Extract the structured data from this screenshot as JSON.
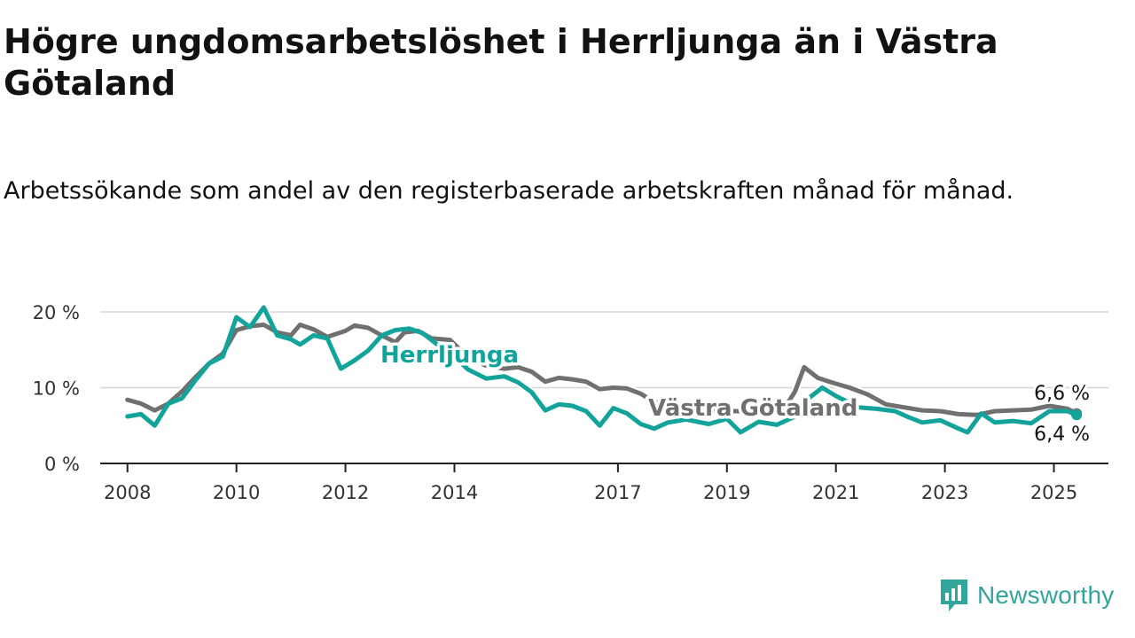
{
  "header": {
    "title": "Högre ungdomsarbetslöshet i Herrljunga än i Västra Götaland",
    "subtitle": "Arbetssökande som andel av den registerbaserade arbetskraften månad för månad."
  },
  "brand": {
    "name": "Newsworthy",
    "icon": "newsworthy-logo-icon",
    "color": "#33a59a"
  },
  "colors": {
    "herrljunga": "#12a39b",
    "vastra_gotaland": "#707070",
    "grid": "#d6d6d6",
    "axis": "#222222"
  },
  "chart_data": {
    "type": "line",
    "title": "Högre ungdomsarbetslöshet i Herrljunga än i Västra Götaland",
    "subtitle": "Arbetssökande som andel av den registerbaserade arbetskraften månad för månad.",
    "xlabel": "",
    "ylabel": "",
    "x_ticks": [
      "2008",
      "2010",
      "2012",
      "2014",
      "2017",
      "2019",
      "2021",
      "2023",
      "2025"
    ],
    "y_ticks": [
      "0 %",
      "10 %",
      "20 %"
    ],
    "ylim": [
      0,
      20
    ],
    "grid": true,
    "legend": "inline labels",
    "end_labels": {
      "Västra Götaland": "6,6 %",
      "Herrljunga": "6,4 %"
    },
    "series": [
      {
        "name": "Västra Götaland",
        "color": "#707070",
        "points": [
          [
            "2008-01",
            8.4
          ],
          [
            "2008-04",
            7.9
          ],
          [
            "2008-07",
            7.0
          ],
          [
            "2008-10",
            7.9
          ],
          [
            "2009-01",
            9.5
          ],
          [
            "2009-04",
            11.4
          ],
          [
            "2009-07",
            13.2
          ],
          [
            "2009-10",
            14.5
          ],
          [
            "2010-01",
            17.6
          ],
          [
            "2010-04",
            18.1
          ],
          [
            "2010-07",
            18.3
          ],
          [
            "2010-10",
            17.3
          ],
          [
            "2011-01",
            16.9
          ],
          [
            "2011-03",
            18.3
          ],
          [
            "2011-06",
            17.7
          ],
          [
            "2011-09",
            16.7
          ],
          [
            "2012-01",
            17.5
          ],
          [
            "2012-03",
            18.2
          ],
          [
            "2012-06",
            17.9
          ],
          [
            "2012-09",
            16.9
          ],
          [
            "2012-12",
            16.0
          ],
          [
            "2013-02",
            17.3
          ],
          [
            "2013-05",
            17.5
          ],
          [
            "2013-08",
            16.5
          ],
          [
            "2013-12",
            16.3
          ],
          [
            "2014-04",
            14.0
          ],
          [
            "2014-08",
            12.9
          ],
          [
            "2014-12",
            12.5
          ],
          [
            "2015-03",
            12.7
          ],
          [
            "2015-06",
            12.1
          ],
          [
            "2015-09",
            10.8
          ],
          [
            "2015-12",
            11.3
          ],
          [
            "2016-03",
            11.1
          ],
          [
            "2016-06",
            10.8
          ],
          [
            "2016-09",
            9.8
          ],
          [
            "2016-12",
            10.0
          ],
          [
            "2017-03",
            9.9
          ],
          [
            "2017-06",
            9.2
          ],
          [
            "2017-09",
            8.1
          ],
          [
            "2017-12",
            7.8
          ],
          [
            "2018-04",
            7.5
          ],
          [
            "2018-09",
            7.1
          ],
          [
            "2019-02",
            6.9
          ],
          [
            "2019-06",
            6.9
          ],
          [
            "2019-10",
            7.2
          ],
          [
            "2020-02",
            7.6
          ],
          [
            "2020-04",
            9.5
          ],
          [
            "2020-06",
            12.7
          ],
          [
            "2020-09",
            11.3
          ],
          [
            "2020-12",
            10.7
          ],
          [
            "2021-04",
            10.0
          ],
          [
            "2021-08",
            9.1
          ],
          [
            "2021-12",
            7.8
          ],
          [
            "2022-04",
            7.4
          ],
          [
            "2022-08",
            7.0
          ],
          [
            "2022-12",
            6.9
          ],
          [
            "2023-04",
            6.5
          ],
          [
            "2023-08",
            6.4
          ],
          [
            "2023-12",
            6.9
          ],
          [
            "2024-04",
            7.0
          ],
          [
            "2024-08",
            7.1
          ],
          [
            "2024-12",
            7.6
          ],
          [
            "2025-04",
            7.2
          ],
          [
            "2025-06",
            6.6
          ]
        ]
      },
      {
        "name": "Herrljunga",
        "color": "#12a39b",
        "points": [
          [
            "2008-01",
            6.2
          ],
          [
            "2008-04",
            6.5
          ],
          [
            "2008-07",
            5.0
          ],
          [
            "2008-10",
            7.9
          ],
          [
            "2009-01",
            8.6
          ],
          [
            "2009-04",
            11.0
          ],
          [
            "2009-07",
            13.2
          ],
          [
            "2009-10",
            14.1
          ],
          [
            "2010-01",
            19.3
          ],
          [
            "2010-04",
            18.0
          ],
          [
            "2010-07",
            20.6
          ],
          [
            "2010-10",
            16.9
          ],
          [
            "2011-01",
            16.4
          ],
          [
            "2011-03",
            15.7
          ],
          [
            "2011-06",
            16.9
          ],
          [
            "2011-09",
            16.5
          ],
          [
            "2011-12",
            12.5
          ],
          [
            "2012-03",
            13.6
          ],
          [
            "2012-06",
            14.9
          ],
          [
            "2012-09",
            16.9
          ],
          [
            "2012-12",
            17.6
          ],
          [
            "2013-03",
            17.8
          ],
          [
            "2013-06",
            17.2
          ],
          [
            "2013-09",
            15.8
          ],
          [
            "2013-12",
            14.6
          ],
          [
            "2014-04",
            12.4
          ],
          [
            "2014-08",
            11.2
          ],
          [
            "2014-12",
            11.5
          ],
          [
            "2015-03",
            10.7
          ],
          [
            "2015-06",
            9.4
          ],
          [
            "2015-09",
            7.0
          ],
          [
            "2015-12",
            7.8
          ],
          [
            "2016-03",
            7.6
          ],
          [
            "2016-06",
            6.9
          ],
          [
            "2016-09",
            5.0
          ],
          [
            "2016-12",
            7.3
          ],
          [
            "2017-03",
            6.6
          ],
          [
            "2017-06",
            5.2
          ],
          [
            "2017-09",
            4.6
          ],
          [
            "2017-12",
            5.4
          ],
          [
            "2018-04",
            5.8
          ],
          [
            "2018-09",
            5.2
          ],
          [
            "2019-01",
            5.9
          ],
          [
            "2019-04",
            4.1
          ],
          [
            "2019-08",
            5.5
          ],
          [
            "2019-12",
            5.1
          ],
          [
            "2020-04",
            6.2
          ],
          [
            "2020-07",
            8.6
          ],
          [
            "2020-10",
            10.0
          ],
          [
            "2021-01",
            8.9
          ],
          [
            "2021-06",
            7.4
          ],
          [
            "2021-10",
            7.2
          ],
          [
            "2022-02",
            6.9
          ],
          [
            "2022-05",
            6.1
          ],
          [
            "2022-08",
            5.4
          ],
          [
            "2022-12",
            5.7
          ],
          [
            "2023-04",
            4.6
          ],
          [
            "2023-06",
            4.1
          ],
          [
            "2023-09",
            6.6
          ],
          [
            "2023-12",
            5.4
          ],
          [
            "2024-04",
            5.6
          ],
          [
            "2024-08",
            5.3
          ],
          [
            "2024-12",
            6.9
          ],
          [
            "2025-04",
            6.9
          ],
          [
            "2025-06",
            6.4
          ]
        ]
      }
    ]
  }
}
